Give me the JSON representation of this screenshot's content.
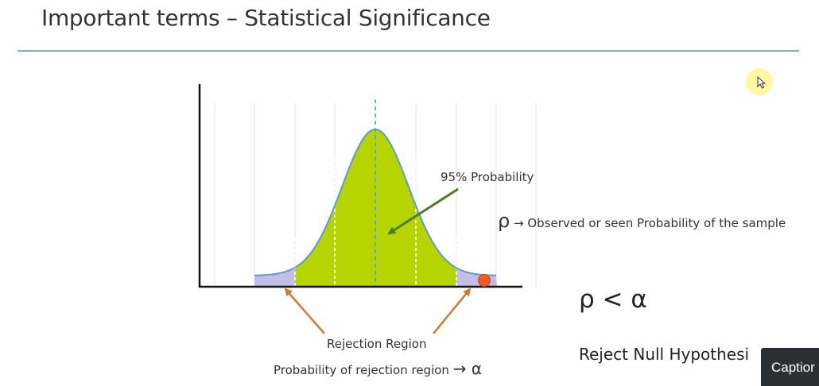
{
  "header": {
    "title": "Important terms – Statistical Significance"
  },
  "diagram": {
    "label_probability": "95% Probability",
    "label_rejection_region": "Rejection Region",
    "label_rejection_probability": "Probability of rejection region",
    "label_rejection_arrow_symbol": "→ α",
    "rho_symbol": "ρ",
    "rho_arrow": "→",
    "rho_definition": "Observed or seen Probability of the sample",
    "inequality": "ρ < α",
    "conclusion": "Reject Null Hypothesi",
    "colors": {
      "center_fill": "#b5d400",
      "tail_fill": "#c3bee5",
      "curve": "#5b9bd5",
      "arrow_green": "#4f7a2a",
      "arrow_orange": "#d17a2e",
      "sample_dot": "#f15a24"
    }
  },
  "controls": {
    "caption_button": "Captior"
  },
  "cursor": {
    "icon": "mouse-pointer-icon",
    "highlight": "#fff799"
  }
}
